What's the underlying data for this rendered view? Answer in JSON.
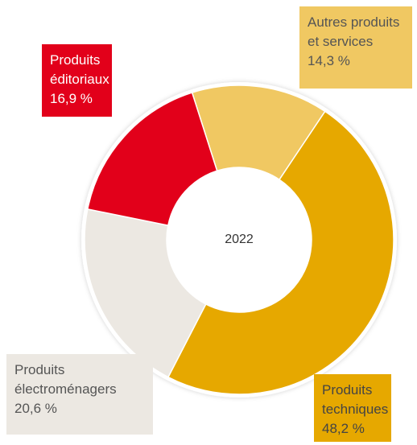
{
  "chart_data": {
    "type": "donut",
    "center_label": "2022",
    "categories": [
      "Autres produits et services",
      "Produits techniques",
      "Produits électroménagers",
      "Produits éditoriaux"
    ],
    "values": [
      14.3,
      48.2,
      20.6,
      16.9
    ],
    "value_labels": [
      "14,3 %",
      "48,2 %",
      "20,6 %",
      "16,9 %"
    ],
    "colors": [
      "#f0c862",
      "#e6a800",
      "#ece8e2",
      "#e2001a"
    ]
  }
}
